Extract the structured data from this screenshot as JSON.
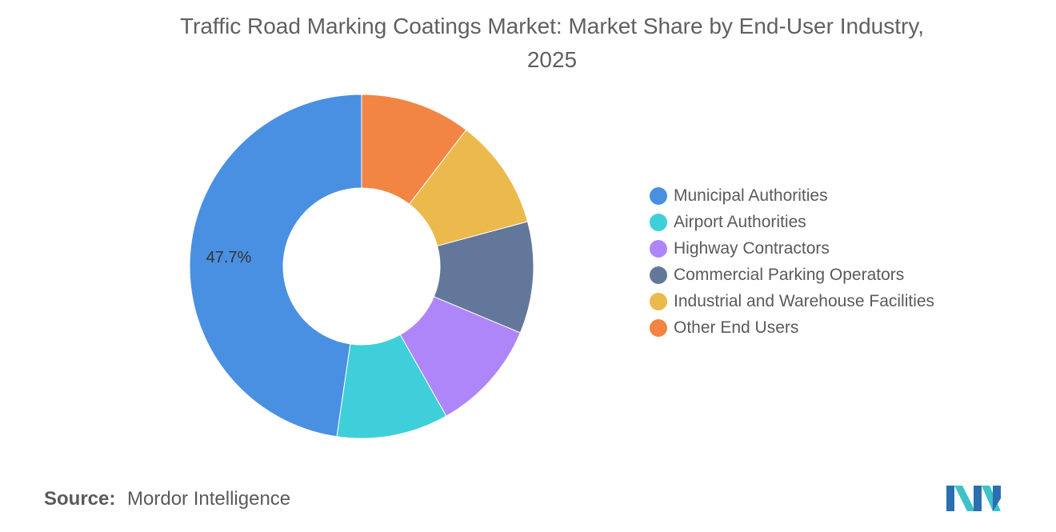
{
  "title": {
    "line1": "Traffic Road Marking Coatings Market: Market Share by End-User Industry,",
    "line2": "2025"
  },
  "chart_data": {
    "type": "pie",
    "variant": "donut",
    "title": "Traffic Road Marking Coatings Market: Market Share by End-User Industry, 2025",
    "categories": [
      "Municipal Authorities",
      "Airport Authorities",
      "Highway Contractors",
      "Commercial Parking Operators",
      "Industrial and Warehouse Facilities",
      "Other End Users"
    ],
    "values": [
      47.7,
      10.5,
      10.5,
      10.5,
      10.4,
      10.4
    ],
    "colors": [
      "#4a90e2",
      "#3ecfda",
      "#ae86f9",
      "#63779a",
      "#ebb94c",
      "#f28444"
    ],
    "data_labels": [
      "47.7%"
    ],
    "start_angle_deg": 0,
    "direction": "counterclockwise",
    "legend_position": "right"
  },
  "source": {
    "key": "Source:",
    "value": "Mordor Intelligence"
  },
  "logo": {
    "name": "mordor-intelligence-logo",
    "colors": [
      "#2a6fb0",
      "#3ec1c9"
    ]
  }
}
